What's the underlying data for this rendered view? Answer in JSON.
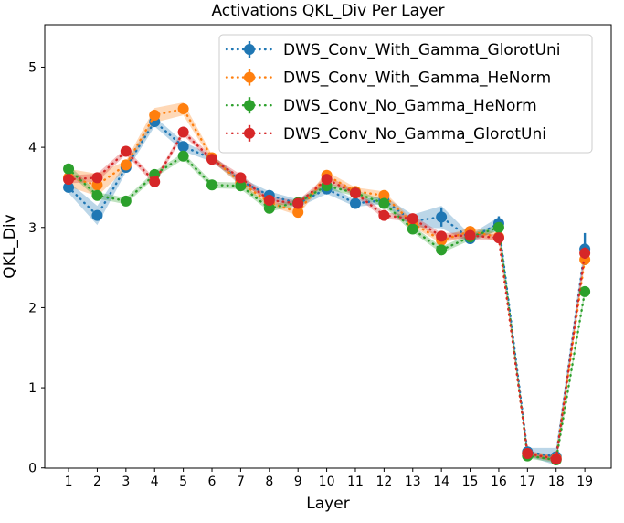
{
  "chart_data": {
    "type": "line",
    "title": "Activations QKL_Div Per Layer",
    "xlabel": "Layer",
    "ylabel": "QKL_Div",
    "x": [
      1,
      2,
      3,
      4,
      5,
      6,
      7,
      8,
      9,
      10,
      11,
      12,
      13,
      14,
      15,
      16,
      17,
      18,
      19
    ],
    "xticks": [
      1,
      2,
      3,
      4,
      5,
      6,
      7,
      8,
      9,
      10,
      11,
      12,
      13,
      14,
      15,
      16,
      17,
      18,
      19
    ],
    "yticks": [
      0,
      1,
      2,
      3,
      4,
      5
    ],
    "xlim": [
      0.17,
      19.92
    ],
    "ylim": [
      -0.003,
      5.53
    ],
    "grid": false,
    "linestyle": "dotted",
    "marker": "o",
    "legend_position": "upper right",
    "series": [
      {
        "name": "DWS_Conv_With_Gamma_GlorotUni",
        "color": "#1f77b4",
        "values": [
          3.5,
          3.15,
          3.75,
          4.32,
          4.01,
          3.86,
          3.58,
          3.4,
          3.3,
          3.48,
          3.3,
          3.34,
          3.08,
          3.13,
          2.86,
          3.05,
          0.2,
          0.14,
          2.73
        ],
        "band": [
          0.07,
          0.12,
          0.06,
          0.06,
          0.06,
          0.04,
          0.04,
          0.05,
          0.05,
          0.06,
          0.04,
          0.05,
          0.08,
          0.14,
          0.05,
          0.08,
          0.05,
          0.11,
          0.08
        ],
        "err": [
          0.03,
          0.03,
          0.03,
          0.03,
          0.03,
          0.03,
          0.03,
          0.03,
          0.03,
          0.03,
          0.03,
          0.03,
          0.03,
          0.12,
          0.03,
          0.09,
          0.03,
          0.05,
          0.2
        ]
      },
      {
        "name": "DWS_Conv_With_Gamma_HeNorm",
        "color": "#ff7f0e",
        "values": [
          3.62,
          3.53,
          3.78,
          4.4,
          4.48,
          3.87,
          3.56,
          3.31,
          3.19,
          3.65,
          3.45,
          3.4,
          3.05,
          2.84,
          2.95,
          2.88,
          0.18,
          0.12,
          2.6
        ],
        "band": [
          0.11,
          0.14,
          0.05,
          0.09,
          0.08,
          0.04,
          0.04,
          0.04,
          0.04,
          0.05,
          0.05,
          0.05,
          0.04,
          0.04,
          0.05,
          0.05,
          0.03,
          0.04,
          0.06
        ],
        "err": [
          0.03,
          0.03,
          0.03,
          0.03,
          0.03,
          0.03,
          0.03,
          0.03,
          0.03,
          0.03,
          0.03,
          0.03,
          0.03,
          0.03,
          0.03,
          0.03,
          0.03,
          0.03,
          0.04
        ]
      },
      {
        "name": "DWS_Conv_No_Gamma_HeNorm",
        "color": "#2ca02c",
        "values": [
          3.73,
          3.4,
          3.33,
          3.66,
          3.89,
          3.53,
          3.52,
          3.24,
          3.31,
          3.52,
          3.43,
          3.3,
          2.98,
          2.72,
          2.88,
          3.0,
          0.15,
          0.1,
          2.2
        ],
        "band": [
          0.05,
          0.04,
          0.04,
          0.04,
          0.04,
          0.04,
          0.04,
          0.04,
          0.04,
          0.04,
          0.04,
          0.04,
          0.04,
          0.04,
          0.04,
          0.04,
          0.03,
          0.04,
          0.05
        ],
        "err": [
          0.03,
          0.03,
          0.03,
          0.03,
          0.03,
          0.03,
          0.03,
          0.03,
          0.03,
          0.03,
          0.03,
          0.03,
          0.03,
          0.03,
          0.03,
          0.03,
          0.03,
          0.03,
          0.04
        ]
      },
      {
        "name": "DWS_Conv_No_Gamma_GlorotUni",
        "color": "#d62728",
        "values": [
          3.6,
          3.62,
          3.95,
          3.57,
          4.19,
          3.85,
          3.62,
          3.34,
          3.3,
          3.6,
          3.43,
          3.15,
          3.11,
          2.89,
          2.9,
          2.87,
          0.18,
          0.11,
          2.68
        ],
        "band": [
          0.05,
          0.05,
          0.04,
          0.04,
          0.04,
          0.04,
          0.04,
          0.04,
          0.04,
          0.04,
          0.04,
          0.04,
          0.04,
          0.04,
          0.04,
          0.04,
          0.03,
          0.04,
          0.07
        ],
        "err": [
          0.03,
          0.03,
          0.03,
          0.03,
          0.03,
          0.03,
          0.03,
          0.03,
          0.03,
          0.03,
          0.03,
          0.03,
          0.03,
          0.03,
          0.03,
          0.03,
          0.03,
          0.03,
          0.07
        ]
      }
    ]
  }
}
